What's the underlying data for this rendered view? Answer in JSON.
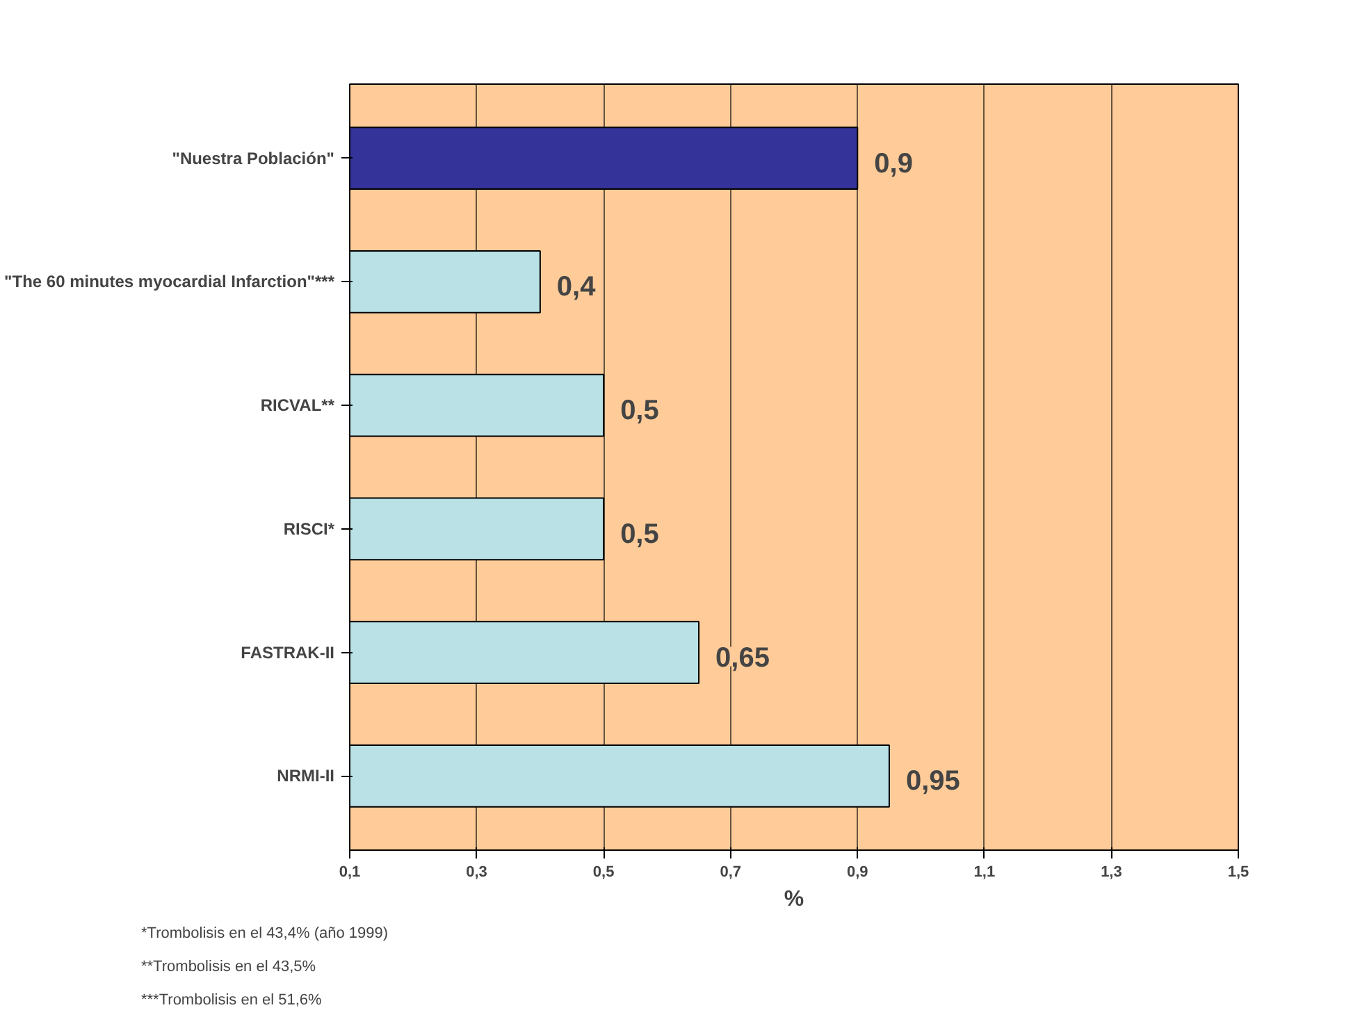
{
  "chart_data": {
    "type": "bar",
    "orientation": "horizontal",
    "categories": [
      "\"Nuestra Población\"",
      "\"The 60 minutes myocardial Infarction\"***",
      "RICVAL**",
      "RISCI*",
      "FASTRAK-II",
      "NRMI-II"
    ],
    "values": [
      0.9,
      0.4,
      0.5,
      0.5,
      0.65,
      0.95
    ],
    "colors": [
      "#333399",
      "#b9e1e6",
      "#b9e1e6",
      "#b9e1e6",
      "#b9e1e6",
      "#b9e1e6"
    ],
    "value_labels": [
      "0,9",
      "0,4",
      "0,5",
      "0,5",
      "0,65",
      "0,95"
    ],
    "xlabel": "%",
    "xlim": [
      0.1,
      1.5
    ],
    "xticks": [
      {
        "value": 0.1,
        "label": "0,1"
      },
      {
        "value": 0.3,
        "label": "0,3"
      },
      {
        "value": 0.5,
        "label": "0,5"
      },
      {
        "value": 0.7,
        "label": "0,7"
      },
      {
        "value": 0.9,
        "label": "0,9"
      },
      {
        "value": 1.1,
        "label": "1,1"
      },
      {
        "value": 1.3,
        "label": "1,3"
      },
      {
        "value": 1.5,
        "label": "1,5"
      }
    ],
    "grid": "x",
    "annotations": [
      "*Trombolisis en el 43,4% (año 1999)",
      "**Trombolisis en el 43,5%",
      "***Trombolisis en el 51,6%"
    ]
  }
}
